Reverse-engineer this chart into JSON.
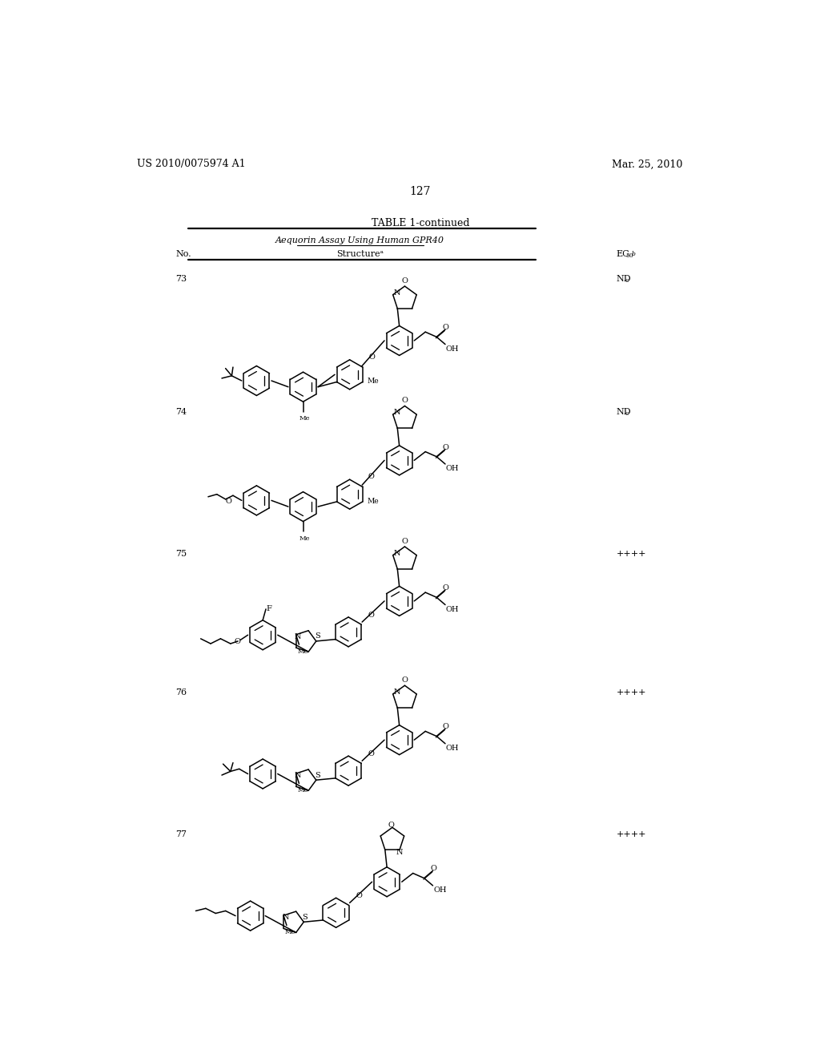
{
  "page_number": "127",
  "patent_number": "US 2010/0075974 A1",
  "patent_date": "Mar. 25, 2010",
  "table_title": "TABLE 1-continued",
  "table_subtitle": "Aequorin Assay Using Human GPR40",
  "col_no": "No.",
  "col_structure": "Structure",
  "col_ec50_label": "EC",
  "col_ec50_sub": "50",
  "col_ec50_sup": "b",
  "rows": [
    {
      "no": "73",
      "ec50": "ND",
      "ec50_sup": "c"
    },
    {
      "no": "74",
      "ec50": "ND",
      "ec50_sup": "c"
    },
    {
      "no": "75",
      "ec50": "++++",
      "ec50_sup": ""
    },
    {
      "no": "76",
      "ec50": "++++",
      "ec50_sup": ""
    },
    {
      "no": "77",
      "ec50": "++++",
      "ec50_sup": ""
    }
  ],
  "bg_color": "#ffffff"
}
